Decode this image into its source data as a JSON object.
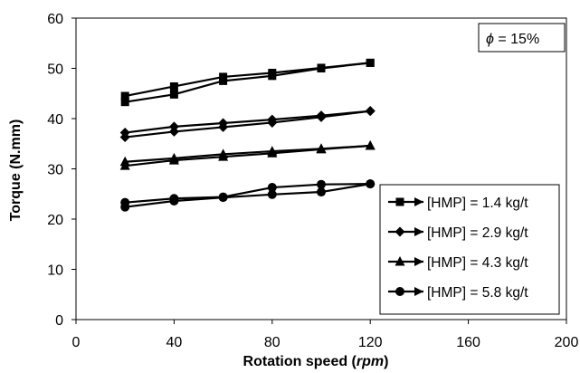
{
  "chart_data": {
    "type": "line",
    "xlabel_main": "Rotation speed (",
    "xlabel_unit": "rpm",
    "xlabel_close": ")",
    "ylabel": "Torque (N.mm)",
    "xlim": [
      0,
      200
    ],
    "ylim": [
      0,
      60
    ],
    "x_ticks": [
      "0",
      "40",
      "80",
      "120",
      "160",
      "200"
    ],
    "y_ticks": [
      "0",
      "10",
      "20",
      "30",
      "40",
      "50",
      "60"
    ],
    "grid": false,
    "legend_position": "bottom-right",
    "annotation_symbol": "ϕ",
    "annotation_value": " = 15%",
    "series": [
      {
        "name": "[HMP] = 1.4 kg/t",
        "marker": "square",
        "upward": {
          "x": [
            20,
            40,
            60,
            80,
            100,
            120
          ],
          "y": [
            43.3,
            44.8,
            47.5,
            48.5,
            50.0,
            51.1
          ]
        },
        "downward": {
          "x": [
            120,
            100,
            80,
            60,
            40,
            20
          ],
          "y": [
            51.1,
            50.1,
            49.1,
            48.3,
            46.4,
            44.5
          ]
        }
      },
      {
        "name": "[HMP] = 2.9 kg/t",
        "marker": "diamond",
        "upward": {
          "x": [
            20,
            40,
            60,
            80,
            100,
            120
          ],
          "y": [
            36.3,
            37.4,
            38.3,
            39.2,
            40.3,
            41.5
          ]
        },
        "downward": {
          "x": [
            120,
            100,
            80,
            60,
            40,
            20
          ],
          "y": [
            41.5,
            40.6,
            39.8,
            39.1,
            38.4,
            37.2
          ]
        }
      },
      {
        "name": "[HMP] = 4.3 kg/t",
        "marker": "triangle",
        "upward": {
          "x": [
            20,
            40,
            60,
            80,
            100,
            120
          ],
          "y": [
            30.6,
            31.7,
            32.4,
            33.1,
            33.9,
            34.6
          ]
        },
        "downward": {
          "x": [
            120,
            100,
            80,
            60,
            40,
            20
          ],
          "y": [
            34.6,
            34.0,
            33.5,
            32.9,
            32.1,
            31.4
          ]
        }
      },
      {
        "name": "[HMP] = 5.8 kg/t",
        "marker": "circle",
        "upward": {
          "x": [
            20,
            40,
            60,
            80,
            100,
            120
          ],
          "y": [
            22.4,
            23.6,
            24.3,
            24.9,
            25.4,
            27.0
          ]
        },
        "downward": {
          "x": [
            120,
            100,
            80,
            60,
            40,
            20
          ],
          "y": [
            27.0,
            26.9,
            26.3,
            24.4,
            24.1,
            23.3
          ]
        }
      }
    ]
  }
}
